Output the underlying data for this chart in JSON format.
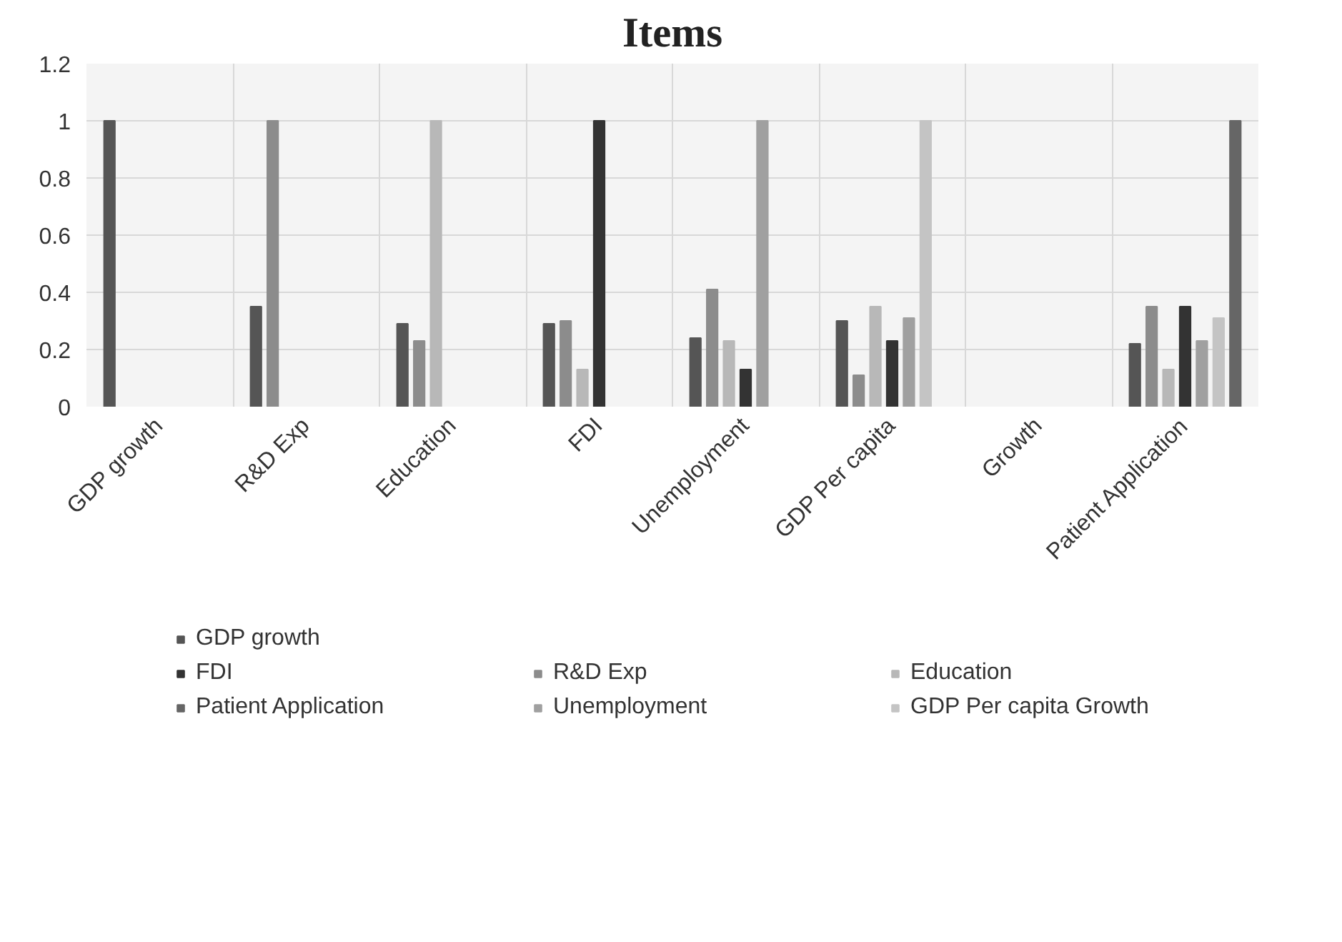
{
  "chart_data": {
    "type": "bar",
    "title": "Items",
    "categories": [
      "GDP growth",
      "R&D Exp",
      "Education",
      "FDI",
      "Unemployment",
      "GDP Per capita",
      "Growth",
      "Patient Application"
    ],
    "series": [
      {
        "name": "GDP growth",
        "color": "#555555",
        "values": [
          1,
          0.35,
          0.29,
          0.29,
          0.24,
          0.3,
          null,
          0.22
        ]
      },
      {
        "name": "R&D Exp",
        "color": "#8c8c8c",
        "values": [
          null,
          1,
          0.23,
          0.3,
          0.41,
          0.11,
          null,
          0.35
        ]
      },
      {
        "name": "Education",
        "color": "#b8b8b8",
        "values": [
          null,
          null,
          1,
          0.13,
          0.23,
          0.35,
          null,
          0.13
        ]
      },
      {
        "name": "FDI",
        "color": "#333333",
        "values": [
          null,
          null,
          null,
          1,
          0.13,
          0.23,
          null,
          0.35
        ]
      },
      {
        "name": "Unemployment",
        "color": "#a0a0a0",
        "values": [
          null,
          null,
          null,
          null,
          1,
          0.31,
          null,
          0.23
        ]
      },
      {
        "name": "GDP Per capita Growth",
        "color": "#c4c4c4",
        "values": [
          null,
          null,
          null,
          null,
          null,
          1,
          null,
          0.31
        ]
      },
      {
        "name": "Patient Application",
        "color": "#666666",
        "values": [
          null,
          null,
          null,
          null,
          null,
          null,
          null,
          1
        ]
      }
    ],
    "ylim": [
      0,
      1.2
    ],
    "yticks": [
      0,
      {
        "value": 0.2,
        "label": "0.2"
      },
      {
        "value": 0.4,
        "label": "0.4"
      },
      {
        "value": 0.6,
        "label": "0.6"
      },
      {
        "value": 0.8,
        "label": "0.8"
      },
      1,
      {
        "value": 1.2,
        "label": "1.2"
      }
    ],
    "grid": true,
    "legend": "bottom"
  }
}
